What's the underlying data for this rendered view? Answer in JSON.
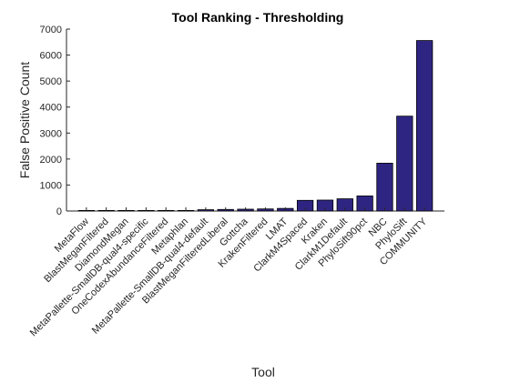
{
  "chart_data": {
    "type": "bar",
    "title": "Tool Ranking - Thresholding",
    "xlabel": "Tool",
    "ylabel": "False Positive Count",
    "ylim": [
      0,
      7000
    ],
    "yticks": [
      0,
      1000,
      2000,
      3000,
      4000,
      5000,
      6000,
      7000
    ],
    "grid": false,
    "bar_color": "#2e2583",
    "categories": [
      "MetaFlow",
      "BlastMeganFiltered",
      "DiamondMegan",
      "MetaPallette-SmallDB-qual4-specific",
      "OneCodexAbundanceFiltered",
      "Metaphlan",
      "MetaPallette-SmallDB-qual4-default",
      "BlastMeganFilteredLiberal",
      "Gottcha",
      "KrakenFiltered",
      "LMAT",
      "ClarkM4Spaced",
      "Kraken",
      "ClarkM1Default",
      "PhyloSift90pct",
      "NBC",
      "PhyloSift",
      "COMMUNITY"
    ],
    "values": [
      5,
      8,
      10,
      12,
      14,
      15,
      50,
      60,
      70,
      80,
      100,
      410,
      420,
      470,
      580,
      1840,
      3650,
      6560
    ]
  }
}
